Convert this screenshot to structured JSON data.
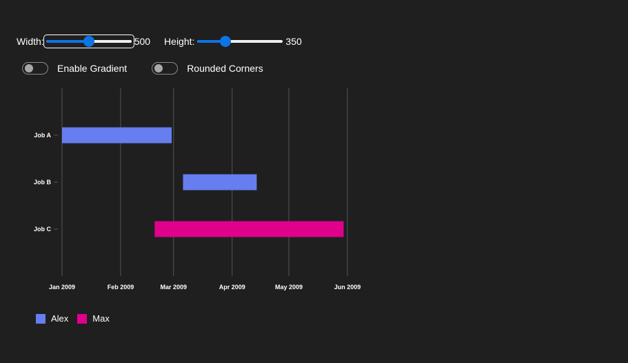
{
  "controls": {
    "width_label": "Width:",
    "width_value": 500,
    "width_min": 100,
    "width_max": 900,
    "height_label": "Height:",
    "height_value": 350,
    "height_min": 100,
    "height_max": 900,
    "gradient_label": "Enable Gradient",
    "gradient_on": false,
    "rounded_label": "Rounded Corners",
    "rounded_on": false
  },
  "chart_data": {
    "type": "bar",
    "orientation": "horizontal",
    "title": "",
    "xlabel": "",
    "ylabel": "",
    "categories": [
      "Job A",
      "Job B",
      "Job C"
    ],
    "x_ticks": [
      "Jan 2009",
      "Feb 2009",
      "Mar 2009",
      "Apr 2009",
      "May 2009",
      "Jun 2009"
    ],
    "xlim": [
      "2009-01-01",
      "2009-06-01"
    ],
    "grid": "vertical",
    "tasks": [
      {
        "category": "Job A",
        "series": "Alex",
        "start": "2009-01-01",
        "end": "2009-02-28"
      },
      {
        "category": "Job B",
        "series": "Alex",
        "start": "2009-03-06",
        "end": "2009-04-14"
      },
      {
        "category": "Job C",
        "series": "Max",
        "start": "2009-02-19",
        "end": "2009-05-30"
      }
    ],
    "series": [
      {
        "name": "Alex",
        "color": "#677ef0"
      },
      {
        "name": "Max",
        "color": "#e0008c"
      }
    ],
    "legend_position": "bottom-left"
  }
}
